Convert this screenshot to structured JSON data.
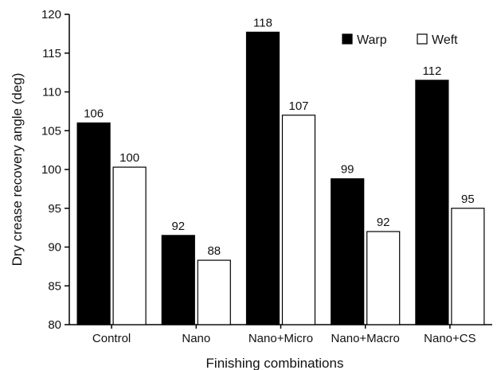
{
  "chart_data": {
    "type": "bar",
    "categories": [
      "Control",
      "Nano",
      "Nano+Micro",
      "Nano+Macro",
      "Nano+CS"
    ],
    "series": [
      {
        "name": "Warp",
        "color": "#000000",
        "values": [
          106,
          91.5,
          117.7,
          98.8,
          111.5
        ],
        "labels": [
          "106",
          "92",
          "118",
          "99",
          "112"
        ]
      },
      {
        "name": "Weft",
        "color": "#ffffff",
        "values": [
          100.3,
          88.3,
          107,
          92,
          95
        ],
        "labels": [
          "100",
          "88",
          "107",
          "92",
          "95"
        ]
      }
    ],
    "xlabel": "Finishing combinations",
    "ylabel": "Dry crease recovery angle (deg)",
    "ylim": [
      80,
      120
    ],
    "yticks": [
      80,
      85,
      90,
      95,
      100,
      105,
      110,
      115,
      120
    ],
    "grid": false,
    "legend": "top-right"
  }
}
